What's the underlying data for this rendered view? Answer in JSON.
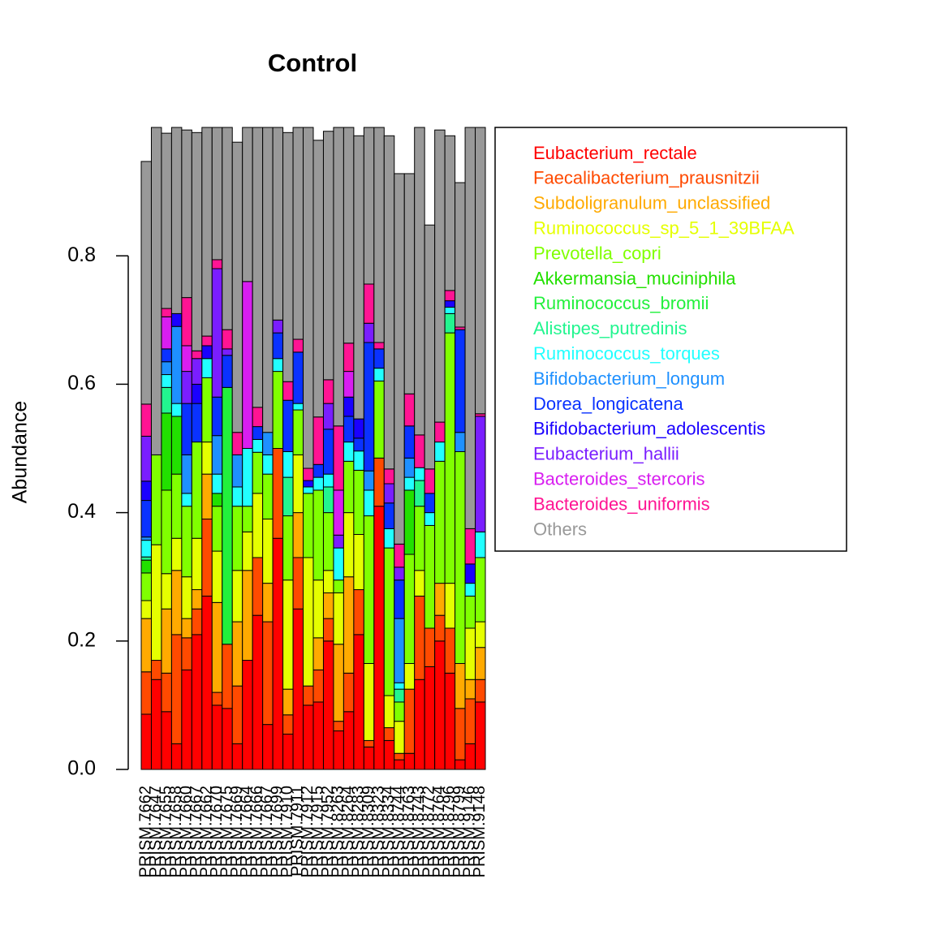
{
  "chart_data": {
    "type": "stacked_bar",
    "title": "Control",
    "y_label": "Abundance",
    "categories": [
      "PRISM.7662",
      "PRISM.7647",
      "PRISM.7655",
      "PRISM.7658",
      "PRISM.7660",
      "PRISM.7667",
      "PRISM.7662",
      "PRISM.7670",
      "PRISM.7675",
      "PRISM.7669",
      "PRISM.7664",
      "PRISM.7666",
      "PRISM.7667",
      "PRISM.7699",
      "PRISM.7910",
      "PRISM.7911",
      "PRISM.7912",
      "PRISM.7915",
      "PRISM.7952",
      "PRISM.8263",
      "PRISM.8264",
      "PRISM.8283",
      "PRISM.8309",
      "PRISM.8323",
      "PRISM.8334",
      "PRISM.8744",
      "PRISM.8763",
      "PRISM.8743",
      "PRISM.8772",
      "PRISM.8764",
      "PRISM.8796",
      "PRISM.8799",
      "PRISM.9146",
      "PRISM.9148"
    ],
    "series": [
      {
        "name": "Eubacterium_rectale",
        "color": "#ff0000",
        "values": [
          0.086,
          0.14,
          0.09,
          0.04,
          0.155,
          0.21,
          0.27,
          0.1,
          0.095,
          0.04,
          0.17,
          0.24,
          0.07,
          0.36,
          0.055,
          0.25,
          0.1,
          0.105,
          0.2,
          0.06,
          0.09,
          0.21,
          0.035,
          0.41,
          0.045,
          0.015,
          0.025,
          0.14,
          0.16,
          0.2,
          0.15,
          0.015,
          0.04,
          0.105
        ]
      },
      {
        "name": "Faecalibacterium_prausnitzii",
        "color": "#ff4a00",
        "values": [
          0.066,
          0.03,
          0.06,
          0.17,
          0.05,
          0.04,
          0.12,
          0.02,
          0.1,
          0.09,
          0,
          0.09,
          0.16,
          0.14,
          0.03,
          0.08,
          0.03,
          0.05,
          0.035,
          0.015,
          0.06,
          0.07,
          0.01,
          0.075,
          0.02,
          0.01,
          0.1,
          0.13,
          0.06,
          0.04,
          0.07,
          0.08,
          0.07,
          0.035
        ]
      },
      {
        "name": "Subdoligranulum_unclassified",
        "color": "#ffaa00",
        "values": [
          0.083,
          0,
          0.1,
          0.1,
          0.03,
          0.03,
          0.07,
          0.14,
          0,
          0.1,
          0.14,
          0,
          0.06,
          0,
          0.04,
          0.07,
          0,
          0.05,
          0.04,
          0.12,
          0.15,
          0,
          0,
          0,
          0,
          0,
          0,
          0,
          0,
          0.05,
          0,
          0.07,
          0.03,
          0.05
        ]
      },
      {
        "name": "Ruminococcus_sp_5_1_39BFAA",
        "color": "#e5ff00",
        "values": [
          0.028,
          0.18,
          0.055,
          0.05,
          0.065,
          0.08,
          0.05,
          0.08,
          0,
          0.08,
          0.06,
          0.1,
          0.1,
          0,
          0.17,
          0.09,
          0.2,
          0.09,
          0.035,
          0.08,
          0.1,
          0.086,
          0.12,
          0,
          0.05,
          0.05,
          0.04,
          0.04,
          0,
          0,
          0.07,
          0,
          0.08,
          0.04
        ]
      },
      {
        "name": "Prevotella_copri",
        "color": "#80ff00",
        "values": [
          0.043,
          0.14,
          0.13,
          0.1,
          0.11,
          0.15,
          0.1,
          0.07,
          0,
          0.1,
          0.04,
          0.064,
          0.07,
          0.12,
          0.1,
          0.07,
          0.1,
          0.14,
          0.09,
          0.02,
          0.08,
          0.1,
          0.23,
          0.12,
          0.23,
          0.03,
          0.17,
          0.1,
          0.16,
          0.19,
          0.39,
          0.33,
          0.05,
          0.1
        ]
      },
      {
        "name": "Akkermansia_muciniphila",
        "color": "#22e000",
        "values": [
          0.02,
          0,
          0.12,
          0.09,
          0,
          0,
          0,
          0.02,
          0,
          0,
          0,
          0,
          0,
          0,
          0,
          0,
          0,
          0,
          0,
          0,
          0,
          0,
          0,
          0,
          0,
          0,
          0.1,
          0,
          0,
          0,
          0,
          0,
          0,
          0
        ]
      },
      {
        "name": "Ruminococcus_bromii",
        "color": "#22f03c",
        "values": [
          0,
          0,
          0,
          0,
          0,
          0,
          0,
          0,
          0.4,
          0,
          0,
          0,
          0,
          0,
          0,
          0,
          0,
          0,
          0,
          0,
          0,
          0,
          0,
          0,
          0,
          0,
          0,
          0,
          0,
          0,
          0,
          0,
          0,
          0
        ]
      },
      {
        "name": "Alistipes_putredinis",
        "color": "#22f58f",
        "values": [
          0.005,
          0,
          0.04,
          0,
          0,
          0,
          0,
          0,
          0,
          0,
          0,
          0,
          0,
          0,
          0.06,
          0,
          0,
          0,
          0.04,
          0,
          0,
          0,
          0,
          0,
          0,
          0.02,
          0,
          0.04,
          0,
          0,
          0.03,
          0,
          0,
          0
        ]
      },
      {
        "name": "Ruminococcus_torques",
        "color": "#22ffff",
        "values": [
          0.026,
          0,
          0.02,
          0.02,
          0.02,
          0,
          0.03,
          0.03,
          0,
          0.03,
          0.09,
          0.02,
          0.03,
          0.02,
          0.04,
          0.01,
          0.01,
          0.02,
          0.02,
          0.05,
          0.03,
          0.03,
          0.04,
          0.02,
          0.03,
          0.01,
          0.02,
          0.02,
          0.02,
          0.03,
          0.01,
          0,
          0.02,
          0.04
        ]
      },
      {
        "name": "Bifidobacterium_longum",
        "color": "#1e90ff",
        "values": [
          0.005,
          0,
          0.02,
          0.12,
          0.06,
          0,
          0,
          0.06,
          0,
          0.05,
          0,
          0,
          0.035,
          0,
          0,
          0,
          0,
          0,
          0,
          0,
          0,
          0,
          0.03,
          0,
          0,
          0.1,
          0.03,
          0,
          0,
          0,
          0,
          0.03,
          0,
          0
        ]
      },
      {
        "name": "Dorea_longicatena",
        "color": "#0a32ff",
        "values": [
          0.057,
          0,
          0.02,
          0,
          0.08,
          0.06,
          0,
          0.06,
          0.05,
          0,
          0,
          0.02,
          0,
          0.04,
          0.08,
          0.08,
          0,
          0.02,
          0.07,
          0,
          0.04,
          0.02,
          0.2,
          0.03,
          0.04,
          0.06,
          0.05,
          0,
          0.03,
          0,
          0,
          0.16,
          0,
          0
        ]
      },
      {
        "name": "Bifidobacterium_adolescentis",
        "color": "#1a00ff",
        "values": [
          0.03,
          0,
          0,
          0.02,
          0,
          0.03,
          0.02,
          0,
          0,
          0,
          0,
          0,
          0,
          0,
          0,
          0,
          0.01,
          0,
          0,
          0,
          0.03,
          0.03,
          0,
          0,
          0,
          0,
          0,
          0,
          0,
          0,
          0.01,
          0,
          0.03,
          0
        ]
      },
      {
        "name": "Eubacterium_hallii",
        "color": "#7a1eff",
        "values": [
          0.07,
          0,
          0,
          0,
          0.05,
          0.04,
          0,
          0.2,
          0.01,
          0,
          0,
          0,
          0,
          0.02,
          0,
          0,
          0,
          0,
          0.04,
          0.02,
          0,
          0,
          0.03,
          0,
          0.03,
          0.02,
          0,
          0,
          0,
          0,
          0,
          0,
          0,
          0.18
        ]
      },
      {
        "name": "Bacteroides_stercoris",
        "color": "#d81ef0",
        "values": [
          0,
          0,
          0.05,
          0,
          0.04,
          0,
          0,
          0,
          0,
          0,
          0.26,
          0,
          0,
          0,
          0,
          0,
          0,
          0,
          0,
          0.07,
          0.04,
          0,
          0,
          0,
          0,
          0,
          0,
          0,
          0,
          0,
          0,
          0,
          0,
          0
        ]
      },
      {
        "name": "Bacteroides_uniformis",
        "color": "#ff1493",
        "values": [
          0.05,
          0,
          0.013,
          0,
          0.075,
          0.012,
          0.015,
          0.014,
          0.03,
          0.035,
          0,
          0.03,
          0,
          0,
          0.029,
          0.02,
          0.019,
          0.074,
          0.037,
          0.1,
          0.044,
          0,
          0.061,
          0.01,
          0.023,
          0.036,
          0.05,
          0.051,
          0.038,
          0.031,
          0.016,
          0.004,
          0.055,
          0.004
        ]
      },
      {
        "name": "Others",
        "color": "#999999",
        "values": [
          0.378,
          0.51,
          0.273,
          0.29,
          0.261,
          0.34,
          0.325,
          0.206,
          0.315,
          0.452,
          0.24,
          0.436,
          0.475,
          0.3,
          0.388,
          0.33,
          0.531,
          0.431,
          0.387,
          0.465,
          0.336,
          0.441,
          0.244,
          0.335,
          0.519,
          0.577,
          0.343,
          0.479,
          0.38,
          0.455,
          0.241,
          0.225,
          0.625,
          0.446
        ]
      }
    ],
    "ylim": [
      0,
      1
    ],
    "yticks": [
      {
        "value": 0,
        "label": "0.0"
      },
      0.2,
      0.4,
      0.6,
      0.8
    ],
    "legend": "right"
  }
}
